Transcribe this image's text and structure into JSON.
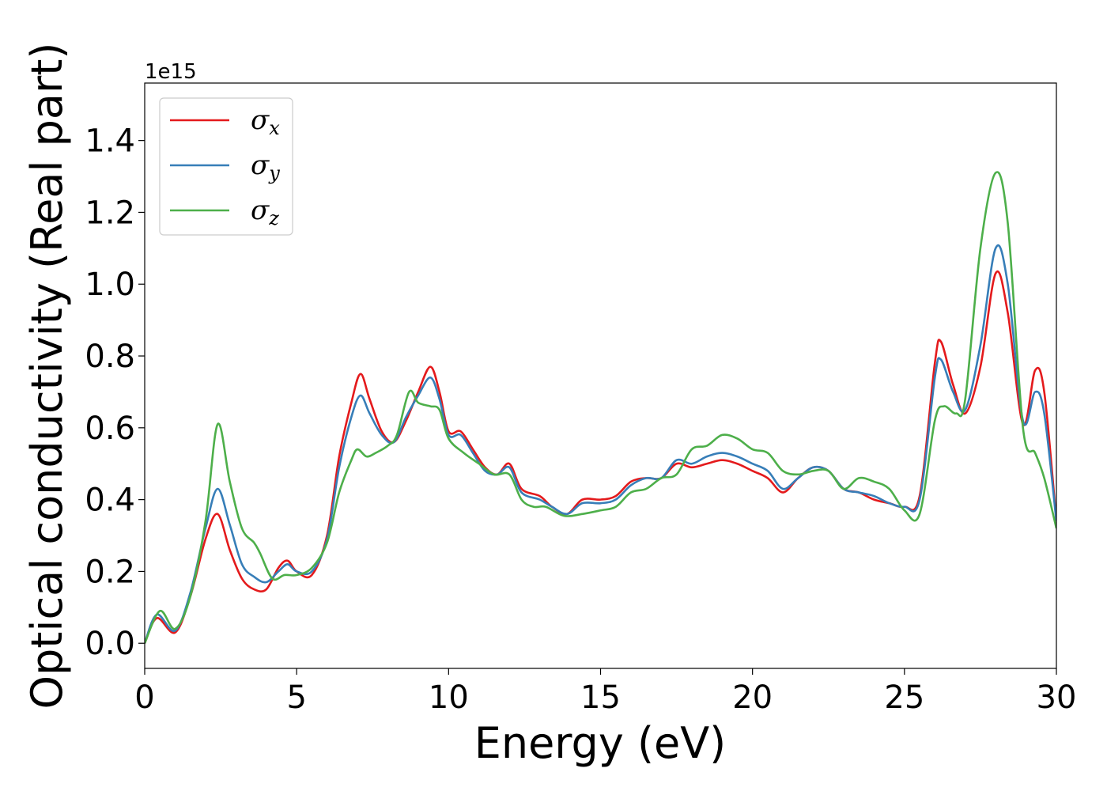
{
  "chart_data": {
    "type": "line",
    "title": "",
    "xlabel": "Energy (eV)",
    "ylabel": "Optical conductivity (Real part)",
    "y_offset_text": "1e15",
    "xlim": [
      0,
      30
    ],
    "ylim": [
      -0.07,
      1.56
    ],
    "xticks": [
      0,
      5,
      10,
      15,
      20,
      25,
      30
    ],
    "yticks": [
      0.0,
      0.2,
      0.4,
      0.6,
      0.8,
      1.0,
      1.2,
      1.4
    ],
    "xtick_labels": [
      "0",
      "5",
      "10",
      "15",
      "20",
      "25",
      "30"
    ],
    "ytick_labels": [
      "0.0",
      "0.2",
      "0.4",
      "0.6",
      "0.8",
      "1.0",
      "1.2",
      "1.4"
    ],
    "grid": false,
    "legend_position": "top-left",
    "series": [
      {
        "name": "σx",
        "symbol": "σ",
        "subscript": "x",
        "color": "#e41a1c",
        "x": [
          0,
          0.4,
          1.0,
          1.5,
          2.0,
          2.4,
          2.8,
          3.2,
          3.6,
          4.0,
          4.4,
          4.7,
          5.0,
          5.5,
          6.0,
          6.4,
          6.8,
          7.1,
          7.4,
          7.8,
          8.2,
          8.6,
          9.0,
          9.4,
          9.7,
          10.0,
          10.4,
          10.8,
          11.2,
          11.6,
          12.0,
          12.4,
          13.0,
          13.4,
          13.9,
          14.4,
          15.0,
          15.5,
          16.0,
          16.5,
          17.0,
          17.5,
          18.0,
          18.5,
          19.0,
          19.5,
          20.0,
          20.5,
          21.0,
          21.5,
          22.0,
          22.5,
          23.0,
          23.5,
          24.0,
          24.5,
          25.0,
          25.5,
          26.0,
          26.2,
          26.6,
          27.0,
          27.5,
          28.0,
          28.4,
          28.9,
          29.3,
          29.6,
          30.0
        ],
        "y": [
          0,
          0.07,
          0.03,
          0.13,
          0.29,
          0.36,
          0.26,
          0.18,
          0.15,
          0.15,
          0.21,
          0.23,
          0.2,
          0.19,
          0.3,
          0.52,
          0.67,
          0.75,
          0.68,
          0.59,
          0.56,
          0.62,
          0.7,
          0.77,
          0.7,
          0.59,
          0.59,
          0.54,
          0.49,
          0.47,
          0.5,
          0.43,
          0.41,
          0.38,
          0.36,
          0.4,
          0.4,
          0.41,
          0.45,
          0.46,
          0.46,
          0.5,
          0.49,
          0.5,
          0.51,
          0.5,
          0.48,
          0.46,
          0.42,
          0.46,
          0.49,
          0.48,
          0.43,
          0.42,
          0.4,
          0.39,
          0.38,
          0.41,
          0.78,
          0.84,
          0.72,
          0.64,
          0.77,
          1.03,
          0.92,
          0.61,
          0.76,
          0.7,
          0.34
        ]
      },
      {
        "name": "σy",
        "symbol": "σ",
        "subscript": "y",
        "color": "#377eb8",
        "x": [
          0,
          0.4,
          1.0,
          1.5,
          2.0,
          2.4,
          2.8,
          3.2,
          3.6,
          4.0,
          4.4,
          4.7,
          5.0,
          5.5,
          6.0,
          6.4,
          6.8,
          7.1,
          7.4,
          7.8,
          8.2,
          8.6,
          9.0,
          9.4,
          9.7,
          10.0,
          10.4,
          10.8,
          11.2,
          11.6,
          12.0,
          12.4,
          13.0,
          13.4,
          13.9,
          14.4,
          15.0,
          15.5,
          16.0,
          16.5,
          17.0,
          17.5,
          18.0,
          18.5,
          19.0,
          19.5,
          20.0,
          20.5,
          21.0,
          21.5,
          22.0,
          22.5,
          23.0,
          23.5,
          24.0,
          24.5,
          25.0,
          25.5,
          26.0,
          26.2,
          26.6,
          27.0,
          27.5,
          28.0,
          28.4,
          28.9,
          29.3,
          29.6,
          30.0
        ],
        "y": [
          0,
          0.08,
          0.035,
          0.14,
          0.32,
          0.43,
          0.33,
          0.22,
          0.185,
          0.17,
          0.2,
          0.22,
          0.2,
          0.2,
          0.29,
          0.49,
          0.63,
          0.69,
          0.64,
          0.58,
          0.56,
          0.63,
          0.69,
          0.74,
          0.68,
          0.58,
          0.58,
          0.53,
          0.48,
          0.47,
          0.49,
          0.42,
          0.4,
          0.38,
          0.36,
          0.39,
          0.39,
          0.4,
          0.44,
          0.46,
          0.46,
          0.51,
          0.5,
          0.52,
          0.53,
          0.52,
          0.5,
          0.48,
          0.43,
          0.46,
          0.49,
          0.48,
          0.43,
          0.42,
          0.41,
          0.39,
          0.38,
          0.4,
          0.74,
          0.79,
          0.7,
          0.65,
          0.83,
          1.1,
          1.0,
          0.62,
          0.7,
          0.64,
          0.34
        ]
      },
      {
        "name": "σz",
        "symbol": "σ",
        "subscript": "z",
        "color": "#4daf4a",
        "x": [
          0,
          0.5,
          1.0,
          1.5,
          2.0,
          2.4,
          2.8,
          3.2,
          3.6,
          3.8,
          4.2,
          4.6,
          5.0,
          5.5,
          6.0,
          6.4,
          6.8,
          7.0,
          7.3,
          7.6,
          8.0,
          8.3,
          8.7,
          9.0,
          9.4,
          9.7,
          10.0,
          10.5,
          11.0,
          11.5,
          12.0,
          12.4,
          12.8,
          13.2,
          13.8,
          14.4,
          15.0,
          15.5,
          16.0,
          16.5,
          17.0,
          17.5,
          18.0,
          18.5,
          19.0,
          19.5,
          20.0,
          20.5,
          21.0,
          21.5,
          22.0,
          22.5,
          23.0,
          23.5,
          24.0,
          24.5,
          25.0,
          25.5,
          26.0,
          26.3,
          26.7,
          27.0,
          27.5,
          28.0,
          28.4,
          28.9,
          29.3,
          29.6,
          30.0
        ],
        "y": [
          0,
          0.09,
          0.04,
          0.13,
          0.34,
          0.61,
          0.45,
          0.32,
          0.28,
          0.25,
          0.18,
          0.19,
          0.19,
          0.21,
          0.28,
          0.42,
          0.51,
          0.54,
          0.52,
          0.53,
          0.55,
          0.58,
          0.7,
          0.67,
          0.66,
          0.65,
          0.57,
          0.53,
          0.5,
          0.47,
          0.47,
          0.4,
          0.38,
          0.38,
          0.355,
          0.36,
          0.37,
          0.38,
          0.42,
          0.43,
          0.46,
          0.47,
          0.54,
          0.55,
          0.58,
          0.57,
          0.54,
          0.53,
          0.48,
          0.47,
          0.48,
          0.48,
          0.43,
          0.46,
          0.45,
          0.43,
          0.37,
          0.36,
          0.62,
          0.66,
          0.64,
          0.68,
          1.1,
          1.31,
          1.17,
          0.6,
          0.53,
          0.46,
          0.32
        ]
      }
    ]
  }
}
